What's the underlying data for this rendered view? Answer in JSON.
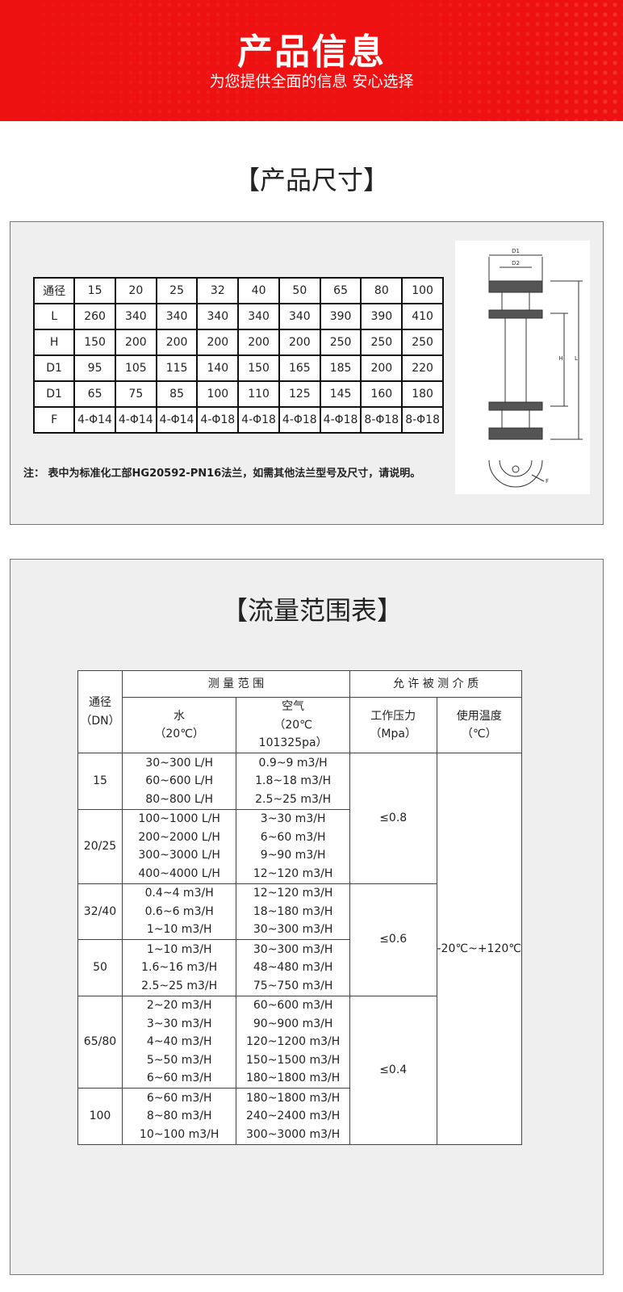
{
  "header": {
    "title": "产品信息",
    "subtitle": "为您提供全面的信息 安心选择"
  },
  "dims": {
    "title": "【产品尺寸】",
    "table": {
      "rows": [
        [
          "通径",
          15,
          20,
          25,
          32,
          40,
          50,
          65,
          80,
          100
        ],
        [
          "L",
          260,
          340,
          340,
          340,
          340,
          340,
          390,
          390,
          410
        ],
        [
          "H",
          150,
          200,
          200,
          200,
          200,
          200,
          250,
          250,
          250
        ],
        [
          "D1",
          95,
          105,
          115,
          140,
          150,
          165,
          185,
          200,
          220
        ],
        [
          "D1",
          65,
          75,
          85,
          100,
          110,
          125,
          145,
          160,
          180
        ],
        [
          "F",
          "4-Φ14",
          "4-Φ14",
          "4-Φ14",
          "4-Φ18",
          "4-Φ18",
          "4-Φ18",
          "4-Φ18",
          "8-Φ18",
          "8-Φ18"
        ]
      ]
    },
    "note": "注： 表中为标准化工部HG20592-PN16法兰，如需其他法兰型号及尺寸，请说明。",
    "diagram": {
      "labels": {
        "d1": "D1",
        "d2": "D2",
        "h": "H",
        "l": "L",
        "f": "F"
      }
    }
  },
  "flow": {
    "title": "【流量范围表】",
    "headers": {
      "dn": "通径",
      "dn_unit": "（DN）",
      "measure": "测 量 范 围",
      "medium": "允 许 被 测 介 质",
      "water": "水",
      "water_unit": "（20℃）",
      "air": "空气",
      "air_cond": "（20℃",
      "air_pressure": "101325pa）",
      "pressure": "工作压力",
      "pressure_unit": "（Mpa）",
      "temp": "使用温度",
      "temp_unit": "（℃）"
    },
    "groups": [
      {
        "dn": "15",
        "water": [
          "30~300 L/H",
          "60~600 L/H",
          "80~800 L/H"
        ],
        "air": [
          "0.9~9 m3/H",
          "1.8~18 m3/H",
          "2.5~25 m3/H"
        ]
      },
      {
        "dn": "20/25",
        "water": [
          "100~1000 L/H",
          "200~2000 L/H",
          "300~3000 L/H",
          "400~4000 L/H"
        ],
        "air": [
          "3~30 m3/H",
          "6~60 m3/H",
          "9~90 m3/H",
          "12~120 m3/H"
        ]
      },
      {
        "dn": "32/40",
        "water": [
          "0.4~4 m3/H",
          "0.6~6 m3/H",
          "1~10 m3/H"
        ],
        "air": [
          "12~120 m3/H",
          "18~180 m3/H",
          "30~300 m3/H"
        ]
      },
      {
        "dn": "50",
        "water": [
          "1~10 m3/H",
          "1.6~16 m3/H",
          "2.5~25 m3/H"
        ],
        "air": [
          "30~300 m3/H",
          "48~480 m3/H",
          "75~750 m3/H"
        ]
      },
      {
        "dn": "65/80",
        "water": [
          "2~20 m3/H",
          "3~30 m3/H",
          "4~40 m3/H",
          "5~50 m3/H",
          "6~60 m3/H"
        ],
        "air": [
          "60~600 m3/H",
          "90~900 m3/H",
          "120~1200 m3/H",
          "150~1500 m3/H",
          "180~1800 m3/H"
        ]
      },
      {
        "dn": "100",
        "water": [
          "6~60 m3/H",
          "8~80 m3/H",
          "10~100 m3/H"
        ],
        "air": [
          "180~1800 m3/H",
          "240~2400 m3/H",
          "300~3000 m3/H"
        ]
      }
    ],
    "pressures": [
      "≤0.8",
      "≤0.6",
      "≤0.4"
    ],
    "temperature": "-20℃~+120℃"
  }
}
